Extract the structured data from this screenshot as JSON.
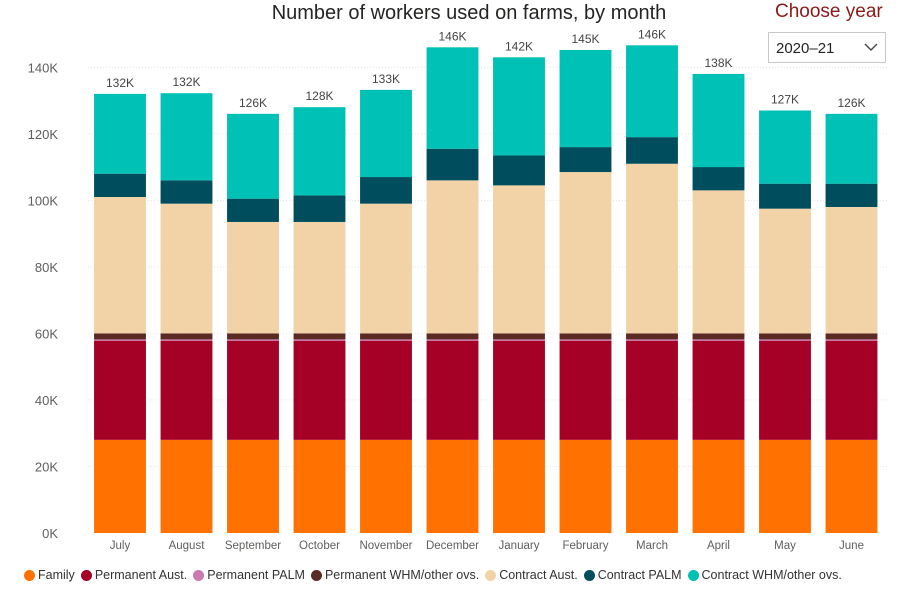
{
  "header": {
    "title": "Number of workers used on farms, by month",
    "choose_year_label": "Choose year",
    "year_selected": "2020–21",
    "dropdown_icon": "chevron-down-icon"
  },
  "chart_data": {
    "type": "bar",
    "stacked": true,
    "title": "Number of workers used on farms, by month",
    "xlabel": "",
    "ylabel": "",
    "ylim": [
      0,
      150000
    ],
    "yticks": [
      0,
      20000,
      40000,
      60000,
      80000,
      100000,
      120000,
      140000
    ],
    "ytick_labels": [
      "0K",
      "20K",
      "40K",
      "60K",
      "80K",
      "100K",
      "120K",
      "140K"
    ],
    "grid": true,
    "legend_position": "bottom",
    "categories": [
      "July",
      "August",
      "September",
      "October",
      "November",
      "December",
      "January",
      "February",
      "March",
      "April",
      "May",
      "June"
    ],
    "totals": [
      "132K",
      "132K",
      "126K",
      "128K",
      "133K",
      "146K",
      "142K",
      "145K",
      "146K",
      "138K",
      "127K",
      "126K"
    ],
    "series": [
      {
        "name": "Family",
        "color": "#ff7100",
        "values": [
          28000,
          28000,
          28000,
          28000,
          28000,
          28000,
          28000,
          28000,
          28000,
          28000,
          28000,
          28000
        ]
      },
      {
        "name": "Permanent Aust.",
        "color": "#a50026",
        "values": [
          29800,
          29800,
          29800,
          29800,
          29800,
          29800,
          29800,
          29800,
          29800,
          29800,
          29800,
          29800
        ]
      },
      {
        "name": "Permanent PALM",
        "color": "#c77bb1",
        "values": [
          400,
          400,
          400,
          400,
          400,
          400,
          400,
          400,
          400,
          400,
          400,
          400
        ]
      },
      {
        "name": "Permanent WHM/other ovs.",
        "color": "#5a2a23",
        "values": [
          1800,
          1800,
          1800,
          1800,
          1800,
          1800,
          1800,
          1800,
          1800,
          1800,
          1800,
          1800
        ]
      },
      {
        "name": "Contract Aust.",
        "color": "#f2d3a7",
        "values": [
          41000,
          39000,
          33500,
          33500,
          39000,
          46000,
          44500,
          48500,
          51000,
          43000,
          37500,
          38000
        ]
      },
      {
        "name": "Contract PALM",
        "color": "#004e5d",
        "values": [
          7000,
          7000,
          7000,
          8000,
          8000,
          9500,
          9000,
          7500,
          8000,
          7000,
          7500,
          7000
        ]
      },
      {
        "name": "Contract WHM/other ovs.",
        "color": "#00c1b5",
        "values": [
          24000,
          26200,
          25500,
          26500,
          26200,
          30500,
          29500,
          29200,
          27600,
          28000,
          22000,
          21000
        ]
      }
    ]
  }
}
